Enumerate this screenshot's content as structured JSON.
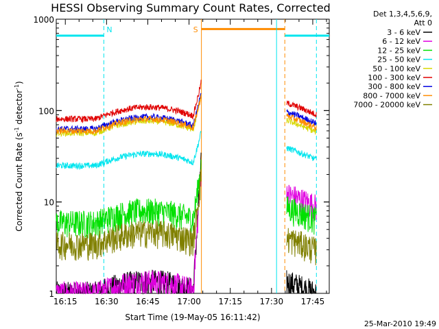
{
  "chart_data": {
    "type": "line",
    "title": "HESSI Observing Summary Count Rates, Corrected",
    "xlabel": "Start Time (19-May-05 16:11:42)",
    "ylabel_main": "Corrected Count Rate (s",
    "ylabel_sup1": "-1",
    "ylabel_mid": " detector",
    "ylabel_sup2": "-1",
    "ylabel_end": ")",
    "yscale": "log",
    "xlim": [
      "16:11:42",
      "17:51:00"
    ],
    "ylim": [
      1,
      1000
    ],
    "x_ticks": [
      "16:15",
      "16:30",
      "16:45",
      "17:00",
      "17:15",
      "17:30",
      "17:45"
    ],
    "y_ticks": [
      "1",
      "10",
      "100",
      "1000"
    ],
    "legend_title": "Det 1,3,4,5,6,9,",
    "legend_subtitle": "Att 0",
    "flags": [
      {
        "label": "N",
        "value": "night",
        "color": "#00e5ee"
      },
      {
        "label": "S",
        "value": "SAA",
        "color": "#ff8c00"
      }
    ],
    "series": [
      {
        "name": "3 - 6 keV",
        "color": "#000000",
        "level_pre": 1,
        "level_peak": 30,
        "level_post": 1
      },
      {
        "name": "6 - 12 keV",
        "color": "#e000e0",
        "level_pre": 1,
        "level_peak": 28,
        "level_post": 9
      },
      {
        "name": "12 - 25 keV",
        "color": "#00e000",
        "level_pre": 6,
        "level_peak": 26,
        "level_post": 6.5
      },
      {
        "name": "25 - 50 keV",
        "color": "#00e5ee",
        "level_pre": 25,
        "level_peak": 60,
        "level_post": 29
      },
      {
        "name": "50 - 100 keV",
        "color": "#d8d800",
        "level_pre": 57,
        "level_peak": 150,
        "level_post": 58
      },
      {
        "name": "100 - 300 keV",
        "color": "#e00000",
        "level_pre": 81,
        "level_peak": 210,
        "level_post": 90
      },
      {
        "name": "300 - 800 keV",
        "color": "#0000e0",
        "level_pre": 63,
        "level_peak": 160,
        "level_post": 72
      },
      {
        "name": "800 - 7000 keV",
        "color": "#ff8c00",
        "level_pre": 60,
        "level_peak": 150,
        "level_post": 65
      },
      {
        "name": "7000 - 20000 keV",
        "color": "#808000",
        "level_pre": 3.5,
        "level_peak": 20,
        "level_post": 3
      }
    ],
    "grid": false,
    "legend_position": "right"
  },
  "footer": {
    "date": "25-Mar-2010 19:49"
  }
}
